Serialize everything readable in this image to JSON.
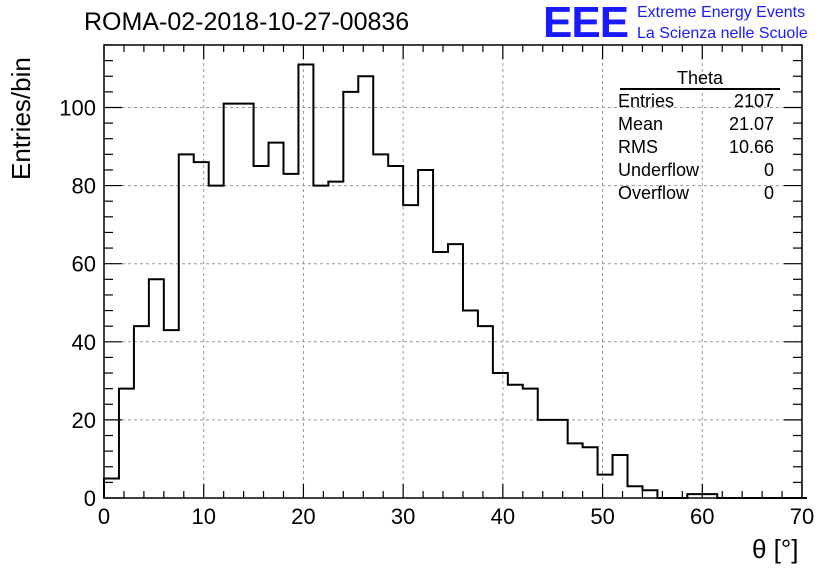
{
  "title": "ROMA-02-2018-10-27-00836",
  "logo": {
    "mark": "EEE",
    "line1": "Extreme Energy Events",
    "line2": "La Scienza nelle Scuole",
    "color": "#1a1aff"
  },
  "stats_box": {
    "title": "Theta",
    "rows": [
      {
        "label": "Entries",
        "value": "2107"
      },
      {
        "label": "Mean",
        "value": "21.07"
      },
      {
        "label": "RMS",
        "value": "10.66"
      },
      {
        "label": "Underflow",
        "value": "0"
      },
      {
        "label": "Overflow",
        "value": "0"
      }
    ]
  },
  "chart_data": {
    "type": "bar",
    "title": "ROMA-02-2018-10-27-00836",
    "xlabel": "θ [°]",
    "ylabel": "Entries/bin",
    "xlim": [
      0,
      70
    ],
    "ylim": [
      0,
      116
    ],
    "bin_width": 1.5,
    "x_ticks": [
      0,
      10,
      20,
      30,
      40,
      50,
      60,
      70
    ],
    "y_ticks": [
      0,
      20,
      40,
      60,
      80,
      100
    ],
    "grid": true,
    "values": [
      5,
      28,
      44,
      56,
      43,
      88,
      86,
      80,
      101,
      101,
      85,
      91,
      83,
      111,
      80,
      81,
      104,
      108,
      88,
      85,
      75,
      84,
      63,
      65,
      48,
      44,
      32,
      29,
      28,
      20,
      20,
      14,
      13,
      6,
      11,
      3,
      2,
      0,
      0,
      1,
      1,
      0,
      0,
      0,
      0,
      0,
      0
    ],
    "line_color": "#000000"
  }
}
